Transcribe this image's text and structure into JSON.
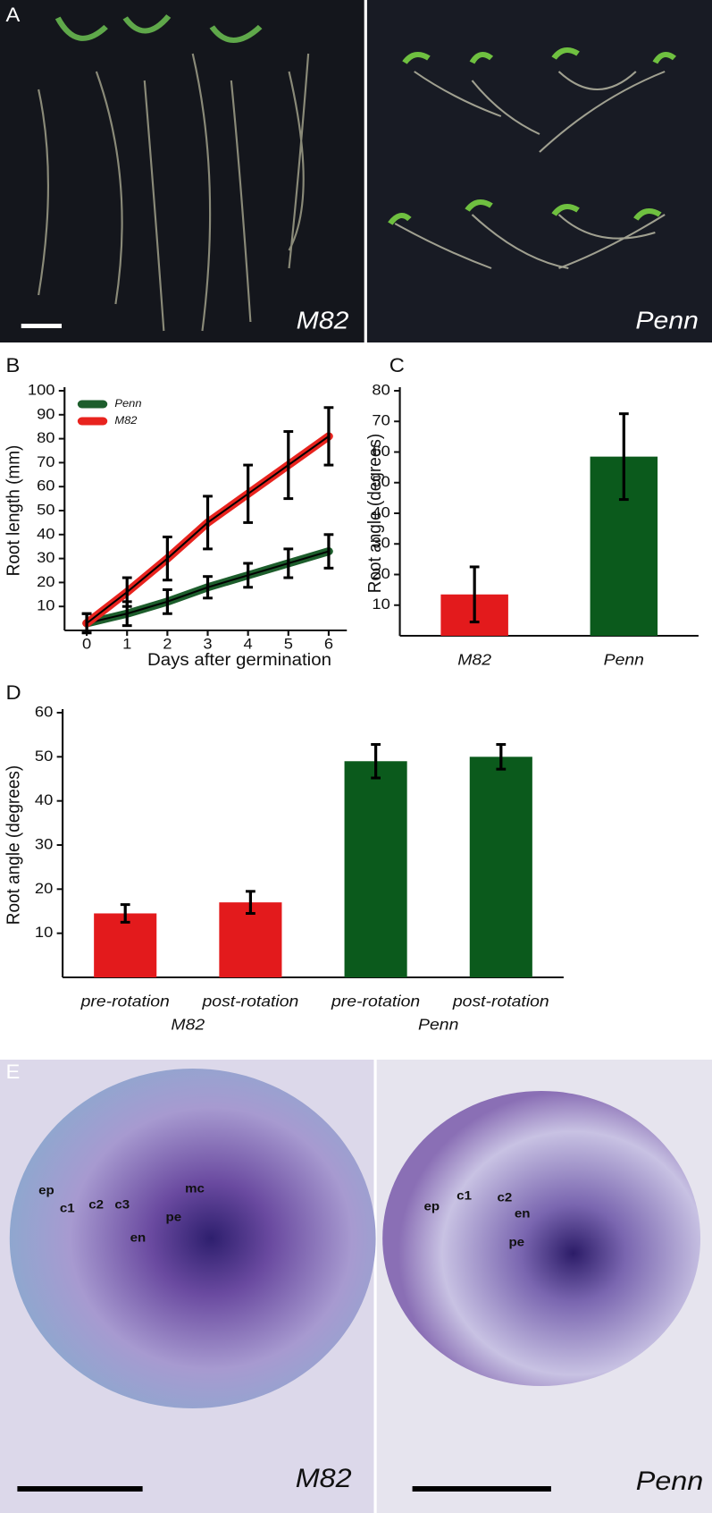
{
  "panel_a": {
    "label": "A",
    "left": "M82",
    "right": "Penn"
  },
  "chart_data": [
    {
      "type": "line",
      "panel": "B",
      "ylabel": "Root length (mm)",
      "xlabel": "Days after germination",
      "x": [
        0,
        1,
        2,
        3,
        4,
        5,
        6
      ],
      "xlim": [
        -0.55,
        6.45
      ],
      "xticks": [
        0,
        1,
        2,
        3,
        4,
        5,
        6
      ],
      "ylim": [
        0,
        100
      ],
      "yticks": [
        10,
        20,
        30,
        40,
        50,
        60,
        70,
        80,
        90,
        100
      ],
      "legend": "upper-left",
      "series": [
        {
          "name": "Penn",
          "color": "#1d5e2c",
          "values": [
            3,
            7,
            12,
            18,
            23,
            28,
            33
          ],
          "errors": [
            4,
            5,
            5,
            4.5,
            5,
            6,
            7
          ]
        },
        {
          "name": "M82",
          "color": "#e8231e",
          "values": [
            3,
            16,
            30,
            45,
            57,
            69,
            81
          ],
          "errors": [
            4,
            6,
            9,
            11,
            12,
            14,
            12
          ]
        }
      ]
    },
    {
      "type": "bar",
      "panel": "C",
      "ylabel": "Root angle (degrees)",
      "categories": [
        "M82",
        "Penn"
      ],
      "values": [
        13.5,
        58.5
      ],
      "errors": [
        9,
        14
      ],
      "colors": [
        "#e31a1c",
        "#0b5a1c"
      ],
      "ylim": [
        0,
        80
      ],
      "yticks": [
        10,
        20,
        30,
        40,
        50,
        60,
        70,
        80
      ]
    },
    {
      "type": "bar",
      "panel": "D",
      "ylabel": "Root angle (degrees)",
      "categories": [
        "pre-rotation",
        "post-rotation",
        "pre-rotation",
        "post-rotation"
      ],
      "group_labels": [
        "M82",
        "Penn"
      ],
      "values": [
        14.5,
        17,
        49,
        50
      ],
      "errors": [
        2,
        2.5,
        3.8,
        2.8
      ],
      "colors": [
        "#e31a1c",
        "#e31a1c",
        "#0b5a1c",
        "#0b5a1c"
      ],
      "ylim": [
        0,
        60
      ],
      "yticks": [
        10,
        20,
        30,
        40,
        50,
        60
      ]
    }
  ],
  "panel_e": {
    "label": "E",
    "left": {
      "name": "M82",
      "cells": [
        "ep",
        "c1",
        "c2",
        "c3",
        "en",
        "pe",
        "mc"
      ]
    },
    "right": {
      "name": "Penn",
      "cells": [
        "ep",
        "c1",
        "c2",
        "en",
        "pe"
      ]
    }
  }
}
